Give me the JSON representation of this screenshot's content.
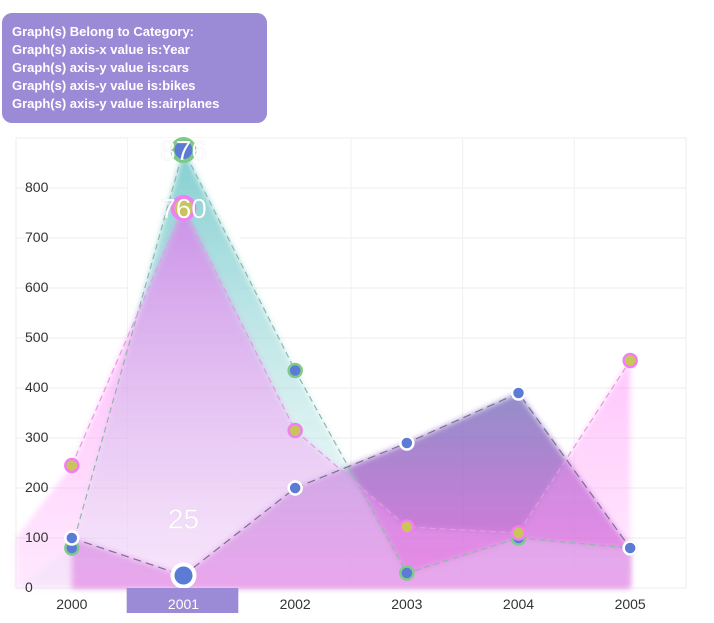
{
  "info": {
    "line1": "Graph(s) Belong to Category:",
    "line2": "Graph(s) axis-x value is:Year",
    "line3": "Graph(s) axis-y value is:cars",
    "line4": "Graph(s) axis-y value is:bikes",
    "line5": "Graph(s) axis-y value is:airplanes"
  },
  "chart_data": {
    "type": "area",
    "categories": [
      "2000",
      "2001",
      "2002",
      "2003",
      "2004",
      "2005"
    ],
    "y_ticks": [
      "0",
      "100",
      "200",
      "300",
      "400",
      "500",
      "600",
      "700",
      "800"
    ],
    "ylim": [
      0,
      900
    ],
    "highlighted_category": "2001",
    "series": [
      {
        "values": [
          80,
          876,
          435,
          30,
          100,
          80
        ],
        "color": "#7ecfd0",
        "point_color": "#5b7bd5",
        "point_border": "#7fc98a"
      },
      {
        "values": [
          245,
          760,
          315,
          122,
          110,
          455
        ],
        "color": "#f36cf0",
        "point_color": "#c9c45c",
        "point_border": "#f080f0"
      },
      {
        "values": [
          100,
          25,
          200,
          290,
          390,
          80
        ],
        "color": "#b23bc8",
        "point_color": "#5b7bd5",
        "point_border": "#ffffff"
      }
    ],
    "value_labels": [
      {
        "text": "876"
      },
      {
        "text": "760"
      },
      {
        "text": "25"
      }
    ],
    "grid": true,
    "legend": "none"
  }
}
